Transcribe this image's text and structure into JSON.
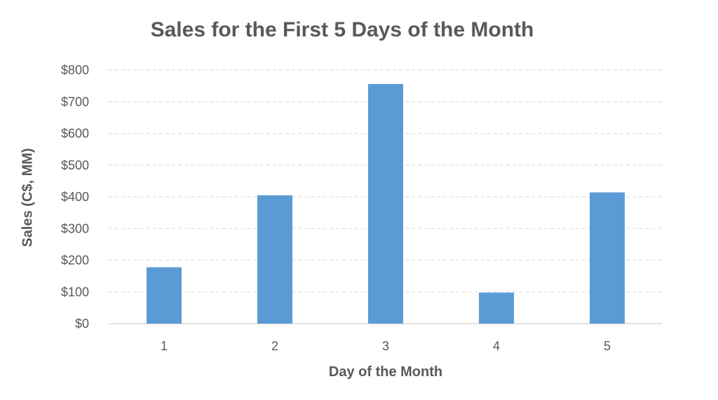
{
  "chart_data": {
    "type": "bar",
    "title": "Sales for the First 5 Days of the Month",
    "xlabel": "Day of the Month",
    "ylabel": "Sales (C$, MM)",
    "categories": [
      "1",
      "2",
      "3",
      "4",
      "5"
    ],
    "values": [
      178,
      405,
      756,
      98,
      414
    ],
    "ylim": [
      0,
      800
    ],
    "yticks": [
      "$0",
      "$100",
      "$200",
      "$300",
      "$400",
      "$500",
      "$600",
      "$700",
      "$800"
    ],
    "grid": true,
    "legend": "none",
    "colors": {
      "bar": "#5B9BD5",
      "grid": "#d9d9d9",
      "axis": "#d9d9d9",
      "text": "#595959"
    }
  }
}
